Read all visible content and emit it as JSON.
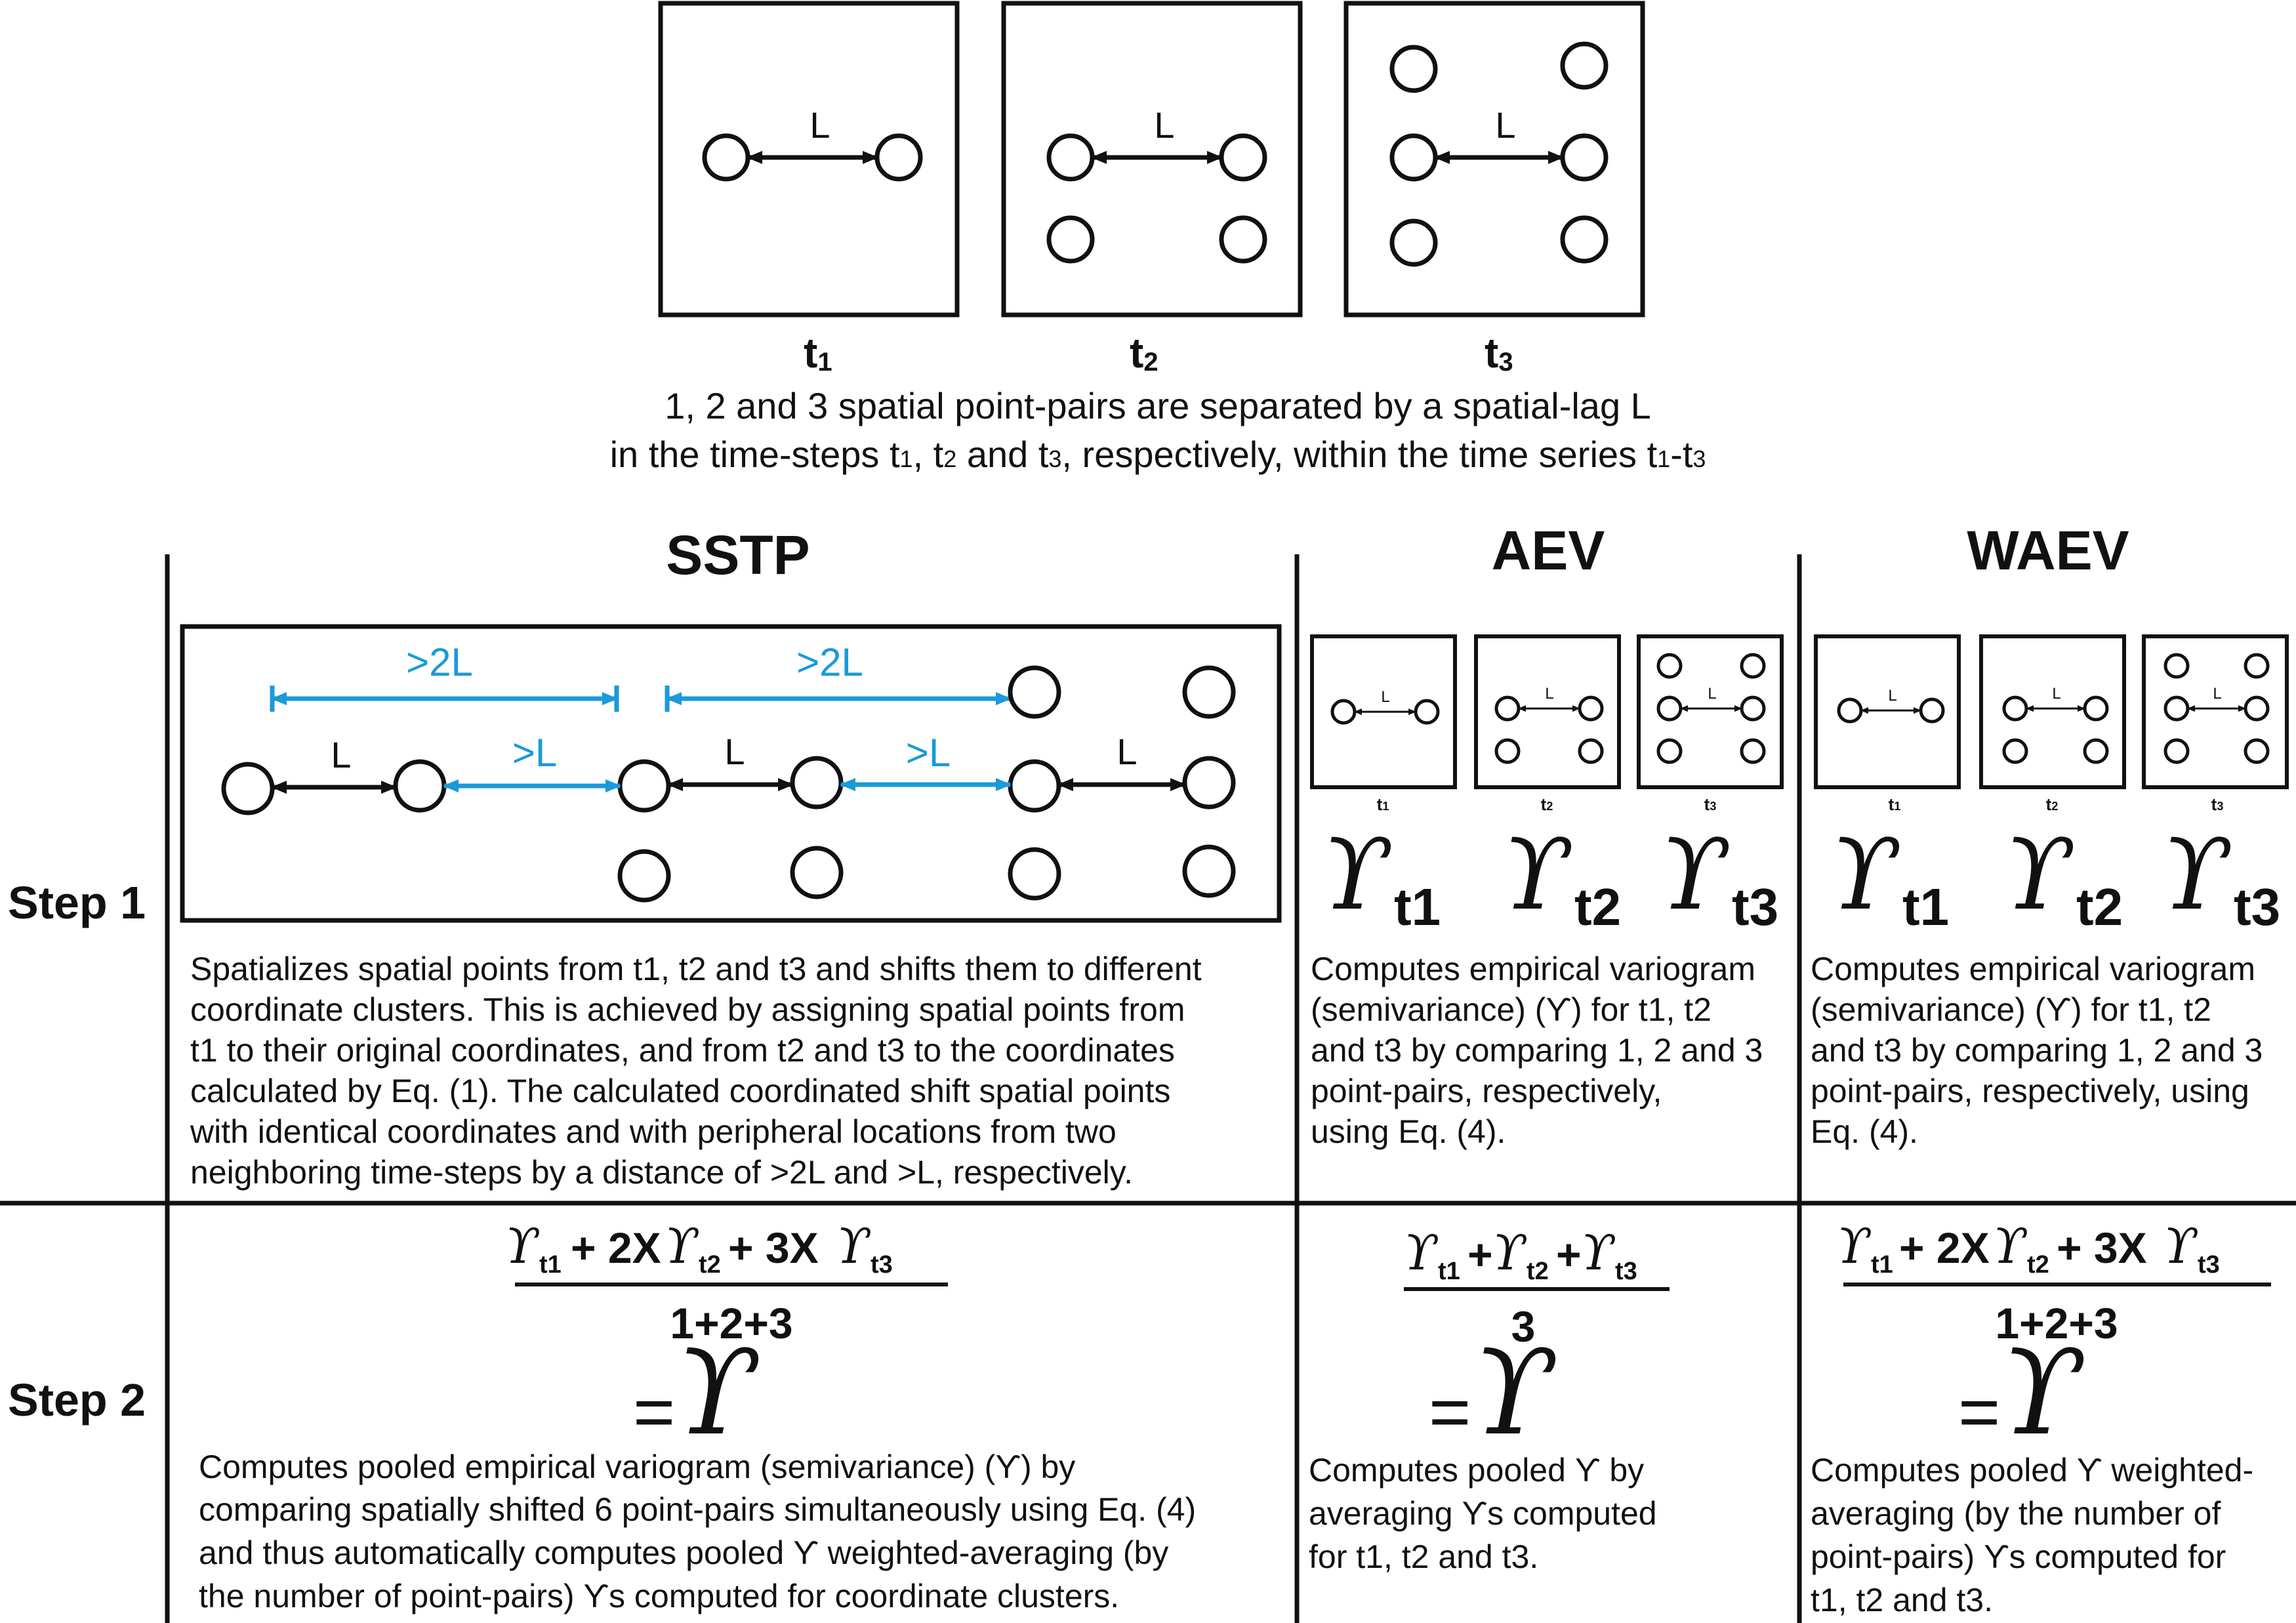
{
  "top": {
    "panels": [
      {
        "label": "t",
        "sub": "1"
      },
      {
        "label": "t",
        "sub": "2"
      },
      {
        "label": "t",
        "sub": "3"
      }
    ],
    "lag": "L",
    "caption_line1": "1, 2 and 3 spatial point-pairs are separated by a spatial-lag L",
    "caption_line2_parts": [
      "in the time-steps t",
      "1",
      ", t",
      "2",
      " and t",
      "3",
      ", respectively, within the time series t",
      "1",
      "-t",
      "3"
    ]
  },
  "columns": {
    "sstp": "SSTP",
    "aev": "AEV",
    "waev": "WAEV"
  },
  "steps": {
    "step1": "Step 1",
    "step2": "Step 2"
  },
  "sstp_diagram": {
    "lag": "L",
    "gt2L": ">2L",
    "gtL": ">L"
  },
  "gamma_symbol": "ϒ",
  "small_panels": {
    "labels": [
      {
        "label": "t",
        "sub": "1"
      },
      {
        "label": "t",
        "sub": "2"
      },
      {
        "label": "t",
        "sub": "3"
      }
    ],
    "lag": "L",
    "gamma_subs": [
      "t1",
      "t2",
      "t3"
    ]
  },
  "step1_text": {
    "sstp": [
      "Spatializes spatial points from t1, t2 and t3 and shifts them to different",
      "coordinate clusters. This is achieved by assigning spatial points from",
      "t1 to their original coordinates, and from t2 and t3 to the coordinates",
      "calculated by Eq. (1). The calculated coordinated shift spatial points",
      "with identical coordinates and with peripheral locations from two",
      "neighboring time-steps by a distance of >2L and >L, respectively."
    ],
    "aev": [
      "Computes empirical variogram",
      "(semivariance) (ϒ)  for t1, t2",
      "and t3 by comparing 1, 2 and 3",
      "point-pairs, respectively,",
      "using Eq. (4)."
    ],
    "waev": [
      "Computes empirical variogram",
      "(semivariance) (ϒ)  for t1, t2",
      "and t3 by comparing 1, 2 and 3",
      "point-pairs, respectively, using",
      "Eq. (4)."
    ]
  },
  "step2_formulas": {
    "weighted_numerator": [
      "+ 2X",
      "+ 3X"
    ],
    "weighted_denominator": "1+2+3",
    "average_numerator": [
      "+",
      "+"
    ],
    "average_denominator": "3",
    "equals": "="
  },
  "step2_text": {
    "sstp": [
      "Computes pooled empirical variogram (semivariance) (ϒ) by",
      "comparing spatially shifted 6 point-pairs simultaneously using Eq. (4)",
      "and thus automatically computes pooled ϒ weighted-averaging (by",
      "the number of point-pairs) ϒs computed for coordinate clusters."
    ],
    "aev": [
      "Computes pooled ϒ by",
      "averaging ϒs computed",
      "for t1, t2 and t3."
    ],
    "waev": [
      "Computes pooled ϒ weighted-",
      "averaging (by the number of",
      "point-pairs) ϒs computed for",
      "t1, t2 and t3."
    ]
  }
}
